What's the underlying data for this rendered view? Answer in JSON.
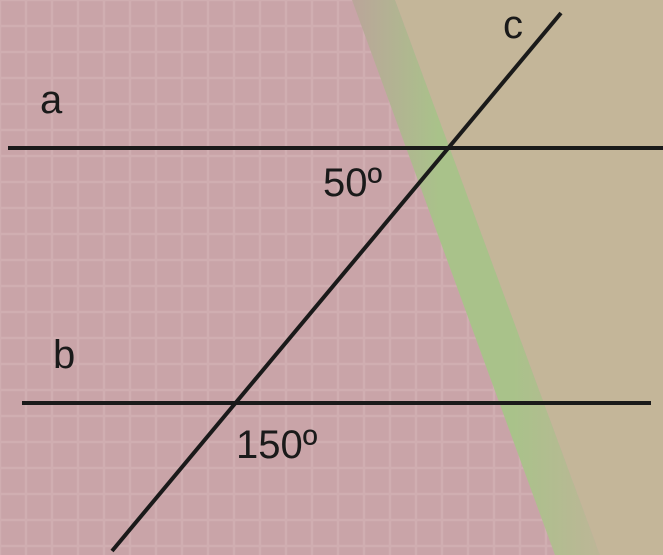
{
  "lines": {
    "a": {
      "label": "a"
    },
    "b": {
      "label": "b"
    },
    "c": {
      "label": "c"
    }
  },
  "angles": {
    "top": {
      "label": "50º"
    },
    "bottom": {
      "label": "150º"
    }
  },
  "colors": {
    "background_left": "#c9a4a8",
    "background_right": "#c4b699",
    "band": "#a9c28a",
    "grid": "#d4b2b5",
    "line": "#1a1a1a"
  }
}
